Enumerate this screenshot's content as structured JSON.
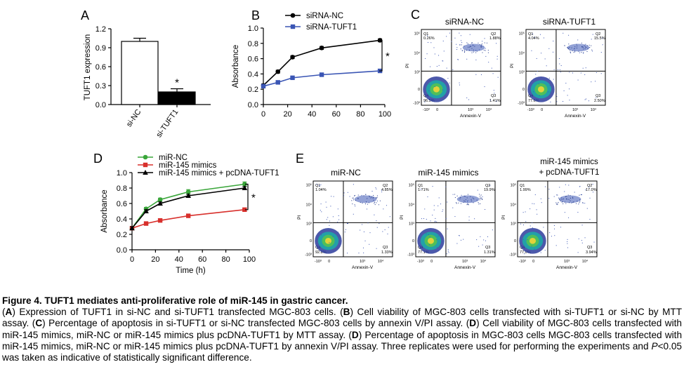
{
  "panels": {
    "A": {
      "letter": "A",
      "chart_data": {
        "type": "bar",
        "ylabel": "TUFT1 expression",
        "ylim": [
          0,
          1.2
        ],
        "yticks": [
          "0.0",
          "0.3",
          "0.6",
          "0.9",
          "1.2"
        ],
        "categories": [
          "si-NC",
          "si-TUFT1"
        ],
        "values": [
          1.0,
          0.2
        ],
        "errors": [
          0.05,
          0.05
        ],
        "bar_colors": [
          "#ffffff",
          "#000000"
        ],
        "annotation": "*"
      }
    },
    "B": {
      "letter": "B",
      "chart_data": {
        "type": "line",
        "ylabel": "Absorbance",
        "xlabel": "",
        "xlim": [
          0,
          100
        ],
        "ylim": [
          0,
          1.0
        ],
        "xticks": [
          "0",
          "20",
          "40",
          "60",
          "80",
          "100"
        ],
        "yticks": [
          "0.0",
          "0.2",
          "0.4",
          "0.6",
          "0.8",
          "1.0"
        ],
        "x": [
          0,
          12,
          24,
          48,
          96
        ],
        "series": [
          {
            "name": "siRNA-NC",
            "values": [
              0.25,
              0.43,
              0.62,
              0.74,
              0.84
            ],
            "errors": [
              0.02,
              0.02,
              0.02,
              0.02,
              0.02
            ],
            "color": "#000000",
            "marker": "circle"
          },
          {
            "name": "siRNA-TUFT1",
            "values": [
              0.24,
              0.29,
              0.35,
              0.39,
              0.44
            ],
            "errors": [
              0.02,
              0.02,
              0.02,
              0.02,
              0.02
            ],
            "color": "#3a55b4",
            "marker": "square"
          }
        ],
        "annotation": "*"
      }
    },
    "C": {
      "letter": "C",
      "plots": [
        {
          "title": "siRNA-NC",
          "q1": "Q1",
          "q1v": "0.26%",
          "q2": "Q2",
          "q2v": "1.88%",
          "q3": "Q3",
          "q3v": "1.41%",
          "q4": "Q4",
          "q4v": "96.5%",
          "xlabel": "Annexin-V",
          "ylabel": "PI"
        },
        {
          "title": "siRNA-TUFT1",
          "q1": "Q1",
          "q1v": "4.04%",
          "q2": "Q2",
          "q2v": "15.5%",
          "q3": "Q3",
          "q3v": "2.50%",
          "q4": "Q4",
          "q4v": "77.6%",
          "xlabel": "Annexin-V",
          "ylabel": "PI"
        }
      ]
    },
    "D": {
      "letter": "D",
      "chart_data": {
        "type": "line",
        "ylabel": "Absorbance",
        "xlabel": "Time (h)",
        "xlim": [
          0,
          100
        ],
        "ylim": [
          0,
          1.0
        ],
        "xticks": [
          "0",
          "20",
          "40",
          "60",
          "80",
          "100"
        ],
        "yticks": [
          "0.0",
          "0.2",
          "0.4",
          "0.6",
          "0.8",
          "1.0"
        ],
        "x": [
          0,
          12,
          24,
          48,
          96
        ],
        "series": [
          {
            "name": "miR-NC",
            "values": [
              0.28,
              0.53,
              0.65,
              0.75,
              0.85
            ],
            "errors": [
              0.02,
              0.02,
              0.02,
              0.03,
              0.03
            ],
            "color": "#3aa63a",
            "marker": "circle"
          },
          {
            "name": "miR-145 mimics",
            "values": [
              0.28,
              0.34,
              0.38,
              0.44,
              0.52
            ],
            "errors": [
              0.02,
              0.02,
              0.02,
              0.02,
              0.02
            ],
            "color": "#d8302c",
            "marker": "square"
          },
          {
            "name": "miR-145 mimics + pcDNA-TUFT1",
            "values": [
              0.28,
              0.5,
              0.6,
              0.7,
              0.8
            ],
            "errors": [
              0.02,
              0.02,
              0.02,
              0.02,
              0.02
            ],
            "color": "#000000",
            "marker": "triangle"
          }
        ],
        "annotation": "*"
      }
    },
    "E": {
      "letter": "E",
      "plots": [
        {
          "title": "miR-NC",
          "title2": "",
          "q1": "Q1",
          "q1v": "1.04%",
          "q2": "Q2",
          "q2v": "4.85%",
          "q3": "Q3",
          "q3v": "1.33%",
          "q4": "Q4",
          "q4v": "92.8%",
          "xlabel": "Annexin-V",
          "ylabel": "PI"
        },
        {
          "title": "miR-145 mimics",
          "title2": "",
          "q1": "Q1",
          "q1v": "1.71%",
          "q2": "Q2",
          "q2v": "19.9%",
          "q3": "Q3",
          "q3v": "1.31%",
          "q4": "Q4",
          "q4v": "77.1%",
          "xlabel": "Annexin-V",
          "ylabel": "PI"
        },
        {
          "title": "miR-145 mimics",
          "title2": "+ pcDNA-TUFT1",
          "q1": "Q1",
          "q1v": "1.99%",
          "q2": "Q2",
          "q2v": "17.0%",
          "q3": "Q3",
          "q3v": "3.94%",
          "q4": "Q4",
          "q4v": "77.0%",
          "xlabel": "Annexin-V",
          "ylabel": "PI"
        }
      ]
    }
  },
  "caption": {
    "title": "Figure 4. TUFT1 mediates anti-proliferative role of miR-145 in gastric cancer.",
    "parts": [
      {
        "t": "(",
        "s": ""
      },
      {
        "t": "A",
        "s": "b"
      },
      {
        "t": ") Expression of TUFT1 in si-NC and si-TUFT1 transfected MGC-803 cells. (",
        "s": ""
      },
      {
        "t": "B",
        "s": "b"
      },
      {
        "t": ") Cell viability of MGC-803 cells transfected with si-TUFT1 or si-NC by MTT assay. (",
        "s": ""
      },
      {
        "t": "C",
        "s": "b"
      },
      {
        "t": ") Percentage of apoptosis in si-TUFT1 or si-NC transfected MGC-803 cells by annexin V/PI assay. (",
        "s": ""
      },
      {
        "t": "D",
        "s": "b"
      },
      {
        "t": ") Cell viability of MGC-803 cells transfected with miR-145 mimics, miR-NC or miR-145 mimics plus pcDNA-TUFT1 by MTT assay. (",
        "s": ""
      },
      {
        "t": "D",
        "s": "b"
      },
      {
        "t": ") Percentage of apoptosis in MGC-803 cells MGC-803 cells transfected with miR-145 mimics, miR-NC or miR-145 mimics plus pcDNA-TUFT1 by annexin V/PI assay. Three replicates were used for performing the experiments and ",
        "s": ""
      },
      {
        "t": "P",
        "s": "it"
      },
      {
        "t": "<0.05 was taken as indicative of statistically significant difference.",
        "s": ""
      }
    ]
  }
}
